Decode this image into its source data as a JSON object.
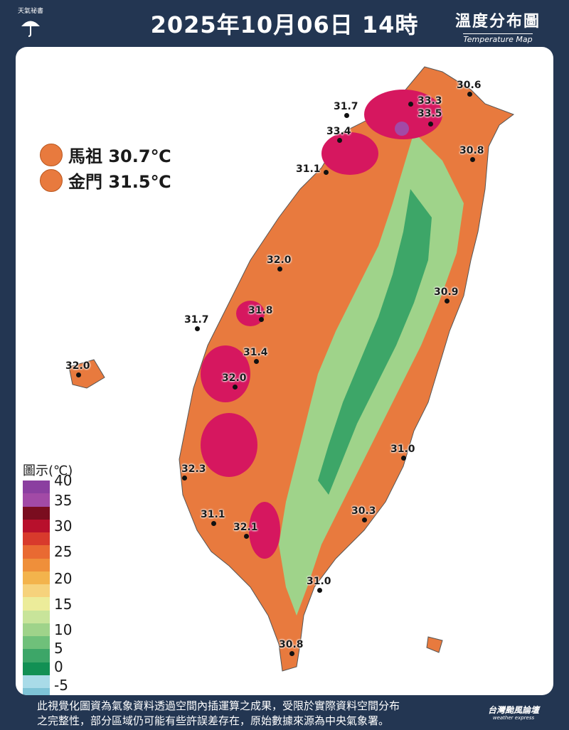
{
  "header": {
    "logo_text": "天氣祕書",
    "title": "2025年10月06日 14時",
    "map_title_zh": "溫度分布圖",
    "map_title_en": "Temperature Map"
  },
  "islands": [
    {
      "name_temp": "馬祖 30.7℃",
      "color": "#e87a3e"
    },
    {
      "name_temp": "金門 31.5℃",
      "color": "#e87a3e"
    }
  ],
  "legend": {
    "title": "圖示(℃)",
    "labels": [
      "40",
      "35",
      "30",
      "25",
      "20",
      "15",
      "10",
      "5",
      "0",
      "-5"
    ],
    "colors": [
      "#8b3fa0",
      "#a24aa6",
      "#7a0d1f",
      "#b8102c",
      "#d83a2c",
      "#e96a32",
      "#ef8f3a",
      "#f3b34c",
      "#f6d27c",
      "#ecec9a",
      "#c8e49a",
      "#9fd38a",
      "#6fc07a",
      "#3da668",
      "#129054",
      "#a9dbe8",
      "#7ec3d6",
      "#4fa7bf",
      "#2b8aa7",
      "#176e8e"
    ]
  },
  "stations": [
    {
      "value": "30.6"
    },
    {
      "value": "33.3"
    },
    {
      "value": "33.5"
    },
    {
      "value": "31.7"
    },
    {
      "value": "33.4"
    },
    {
      "value": "30.8"
    },
    {
      "value": "31.1"
    },
    {
      "value": "32.0"
    },
    {
      "value": "31.8"
    },
    {
      "value": "30.9"
    },
    {
      "value": "31.7"
    },
    {
      "value": "31.4"
    },
    {
      "value": "32.0"
    },
    {
      "value": "32.0"
    },
    {
      "value": "31.0"
    },
    {
      "value": "32.3"
    },
    {
      "value": "31.1"
    },
    {
      "value": "32.1"
    },
    {
      "value": "30.3"
    },
    {
      "value": "31.0"
    },
    {
      "value": "30.8"
    }
  ],
  "footer": {
    "note_line1": "此視覺化圖資為氣象資料透過空間內插運算之成果，受限於實際資料空間分布",
    "note_line2": "之完整性，部分區域仍可能有些許誤差存在，原始數據來源為中央氣象署。",
    "brand": "台灣颱風論壇",
    "brand_sub": "weather express"
  },
  "colors": {
    "background": "#233652",
    "lowland": "#e87a3e",
    "hot": "#d6175f",
    "mountain_mid": "#8fcf7a",
    "mountain_high": "#2e9a5a"
  }
}
